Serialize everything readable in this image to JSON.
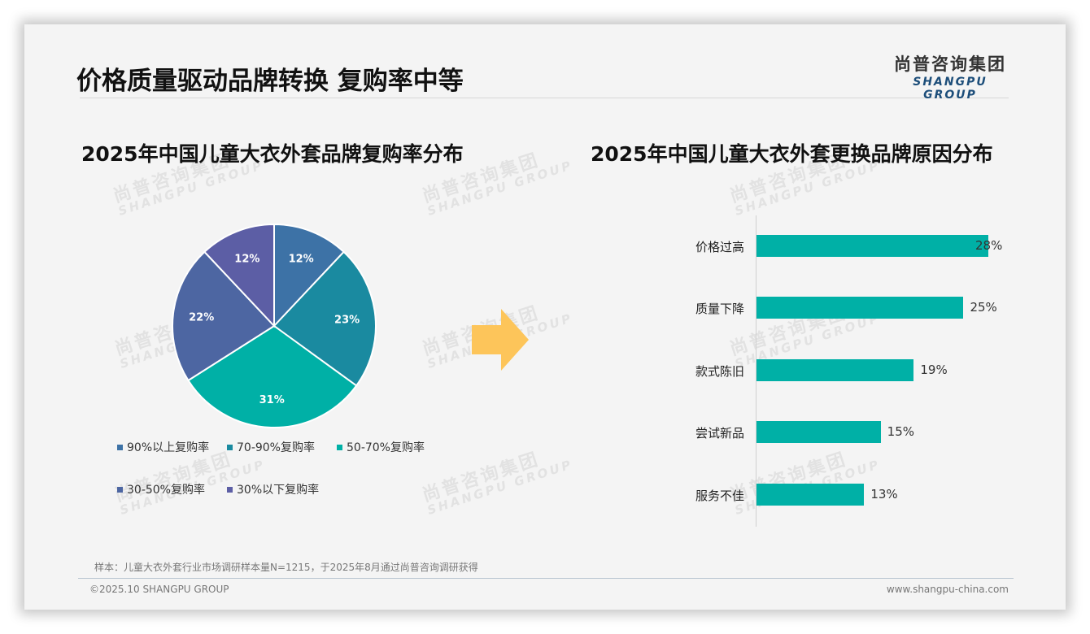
{
  "header": {
    "title": "价格质量驱动品牌转换 复购率中等",
    "logo_cn": "尚普咨询集团",
    "logo_en": "SHANGPU GROUP"
  },
  "watermark": {
    "cn": "尚普咨询集团",
    "en": "SHANGPU GROUP"
  },
  "colors": {
    "slide_bg": "#f4f4f4",
    "arrow": "#fdc55a",
    "bar": "#00b0a6",
    "logo_en": "#1d4e7a"
  },
  "chart_data": [
    {
      "type": "pie",
      "title": "2025年中国儿童大衣外套品牌复购率分布",
      "categories": [
        "90%以上复购率",
        "70-90%复购率",
        "50-70%复购率",
        "30-50%复购率",
        "30%以下复购率"
      ],
      "values": [
        12,
        23,
        31,
        22,
        12
      ],
      "labels": [
        "12%",
        "23%",
        "31%",
        "22%",
        "12%"
      ],
      "colors": [
        "#3d72a6",
        "#1a8aa0",
        "#00b0a6",
        "#4d66a2",
        "#5c5ea5"
      ],
      "start_angle": "12 o'clock, clockwise",
      "legend_position": "bottom"
    },
    {
      "type": "bar",
      "orientation": "horizontal",
      "title": "2025年中国儿童大衣外套更换品牌原因分布",
      "categories": [
        "价格过高",
        "质量下降",
        "款式陈旧",
        "尝试新品",
        "服务不佳"
      ],
      "values": [
        28,
        25,
        19,
        15,
        13
      ],
      "labels": [
        "28%",
        "25%",
        "19%",
        "15%",
        "13%"
      ],
      "color": "#00b0a6",
      "grid": false,
      "xlim": [
        0,
        30
      ]
    }
  ],
  "legend": {
    "items": [
      {
        "label": "90%以上复购率",
        "color": "#3d72a6"
      },
      {
        "label": "70-90%复购率",
        "color": "#1a8aa0"
      },
      {
        "label": "50-70%复购率",
        "color": "#00b0a6"
      },
      {
        "label": "30-50%复购率",
        "color": "#4d66a2"
      },
      {
        "label": "30%以下复购率",
        "color": "#5c5ea5"
      }
    ]
  },
  "footer": {
    "source": "样本：儿童大衣外套行业市场调研样本量N=1215，于2025年8月通过尚普咨询调研获得",
    "copyright": "©2025.10 SHANGPU GROUP",
    "website": "www.shangpu-china.com"
  }
}
